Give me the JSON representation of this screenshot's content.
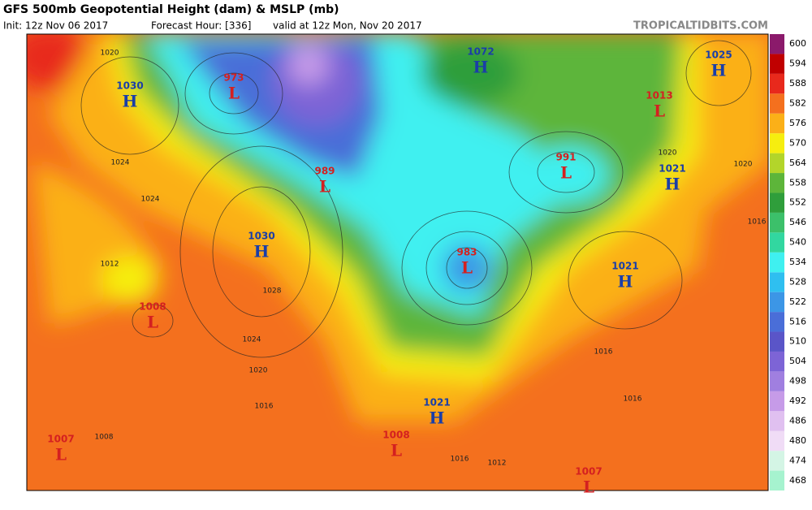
{
  "header": {
    "title": "GFS 500mb Geopotential Height (dam) & MSLP (mb)",
    "subtitle": "Init: 12z Nov 06 2017",
    "forecast": "Forecast Hour: [336]",
    "valid": "valid at 12z Mon, Nov 20 2017",
    "site": "TROPICALTIDBITS.COM"
  },
  "colorbar": {
    "levels": [
      468,
      474,
      480,
      486,
      492,
      498,
      504,
      510,
      516,
      522,
      528,
      534,
      540,
      546,
      552,
      558,
      564,
      570,
      576,
      582,
      588,
      594,
      600
    ],
    "colors": [
      "#a6f3cf",
      "#d4f5e5",
      "#f0dcf6",
      "#e0c0f0",
      "#c69be8",
      "#a07fe0",
      "#7d64d6",
      "#5a55c8",
      "#4a6ed8",
      "#3c96e6",
      "#2fbff0",
      "#3ff0f0",
      "#32d7a0",
      "#3cc06a",
      "#2f9e3b",
      "#5db53a",
      "#b3d52a",
      "#f6ee0f",
      "#fbb018",
      "#f4701e",
      "#e8291c",
      "#c00000",
      "#8b1a6b"
    ]
  },
  "centers": [
    {
      "type": "H",
      "value": 1030
    },
    {
      "type": "L",
      "value": 973
    },
    {
      "type": "L",
      "value": 989
    },
    {
      "type": "H",
      "value": 1030
    },
    {
      "type": "L",
      "value": 1008
    },
    {
      "type": "L",
      "value": 1007
    },
    {
      "type": "L",
      "value": 1008
    },
    {
      "type": "H",
      "value": 1021
    },
    {
      "type": "L",
      "value": 983
    },
    {
      "type": "H",
      "value": 1072
    },
    {
      "type": "L",
      "value": 991
    },
    {
      "type": "H",
      "value": 1021
    },
    {
      "type": "H",
      "value": 1021
    },
    {
      "type": "L",
      "value": 1013
    },
    {
      "type": "H",
      "value": 1025
    },
    {
      "type": "L",
      "value": 1007
    }
  ],
  "isobar_labels": [
    1020,
    1024,
    1024,
    1012,
    1028,
    1024,
    1020,
    1016,
    1008,
    1016,
    1016,
    1020,
    1020,
    1016,
    1012,
    1016
  ]
}
